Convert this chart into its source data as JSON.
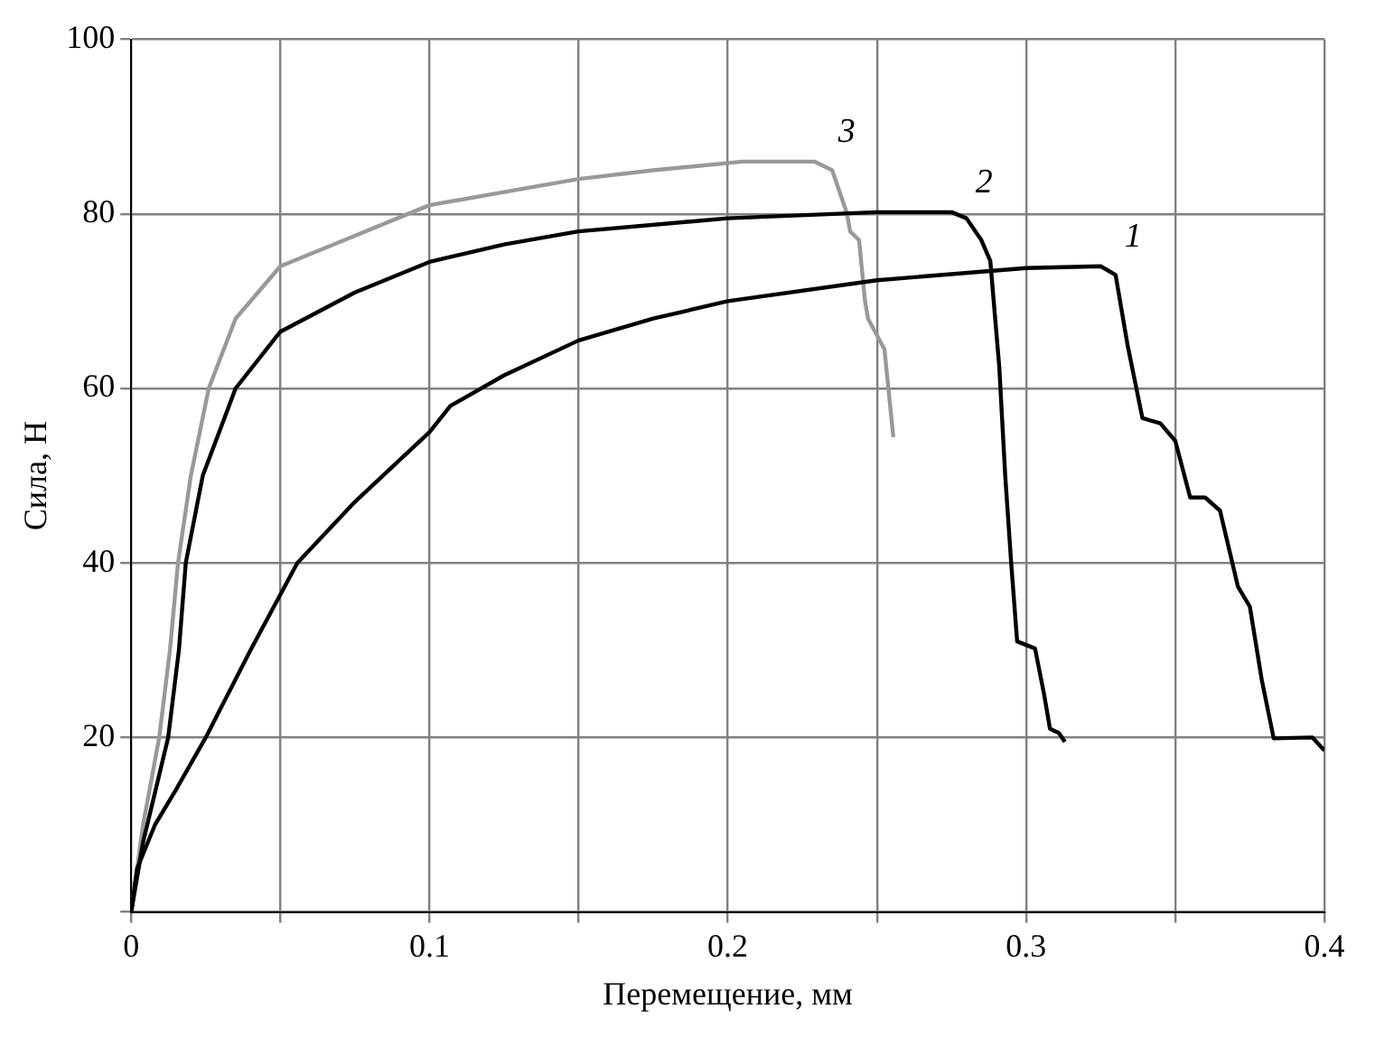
{
  "chart_data": {
    "type": "line",
    "xlabel": "Перемещение, мм",
    "ylabel": "Сила, Н",
    "xlim": [
      0,
      0.4
    ],
    "ylim": [
      0,
      100
    ],
    "xticks": [
      0,
      {
        "value": 0.05,
        "label": null
      },
      0.1,
      {
        "value": 0.15,
        "label": null
      },
      0.2,
      {
        "value": 0.25,
        "label": null
      },
      0.3,
      {
        "value": 0.35,
        "label": null
      },
      0.4
    ],
    "yticks": [
      {
        "value": 0,
        "label": null
      },
      20,
      40,
      60,
      80,
      100
    ],
    "grid": true,
    "legend": false,
    "marker": "none",
    "line_style": "solid",
    "series": [
      {
        "name": "1",
        "color": "#000000",
        "x": [
          0,
          0.002,
          0.008,
          0.015,
          0.025,
          0.04,
          0.0557,
          0.075,
          0.1,
          0.107,
          0.125,
          0.15,
          0.175,
          0.2,
          0.25,
          0.3,
          0.325,
          0.33,
          0.334,
          0.339,
          0.345,
          0.35,
          0.355,
          0.36,
          0.365,
          0.371,
          0.375,
          0.379,
          0.383,
          0.396,
          0.4
        ],
        "values": [
          0,
          5,
          10,
          14,
          20,
          30,
          40,
          47,
          55,
          58,
          61.5,
          65.5,
          68,
          70,
          72.4,
          73.8,
          74,
          73,
          65,
          56.6,
          56,
          54,
          47.5,
          47.5,
          46,
          37.3,
          35,
          26.6,
          19.9,
          20,
          18.5
        ]
      },
      {
        "name": "2",
        "color": "#000000",
        "x": [
          0,
          0.004,
          0.0124,
          0.016,
          0.0183,
          0.024,
          0.035,
          0.05,
          0.075,
          0.1,
          0.125,
          0.15,
          0.2,
          0.25,
          0.275,
          0.28,
          0.285,
          0.288,
          0.291,
          0.293,
          0.295,
          0.297,
          0.303,
          0.306,
          0.308,
          0.311,
          0.313
        ],
        "values": [
          0,
          8,
          20,
          30,
          40,
          50,
          60,
          66.5,
          71,
          74.5,
          76.5,
          78,
          79.5,
          80.2,
          80.2,
          79.5,
          77,
          74.6,
          62.5,
          50,
          40,
          31,
          30.2,
          25,
          21,
          20.5,
          19.5
        ]
      },
      {
        "name": "3",
        "color": "#999999",
        "x": [
          0,
          0.004,
          0.0094,
          0.013,
          0.0157,
          0.02,
          0.026,
          0.035,
          0.05,
          0.075,
          0.1,
          0.125,
          0.15,
          0.175,
          0.205,
          0.229,
          0.235,
          0.24,
          0.241,
          0.244,
          0.246,
          0.247,
          0.2525,
          0.2555
        ],
        "values": [
          0,
          10,
          20,
          30,
          40,
          50,
          60,
          68,
          74,
          77.5,
          81,
          82.5,
          84,
          85,
          86,
          86,
          85,
          80,
          78,
          77,
          70,
          68,
          64.5,
          54.4
        ]
      }
    ]
  }
}
